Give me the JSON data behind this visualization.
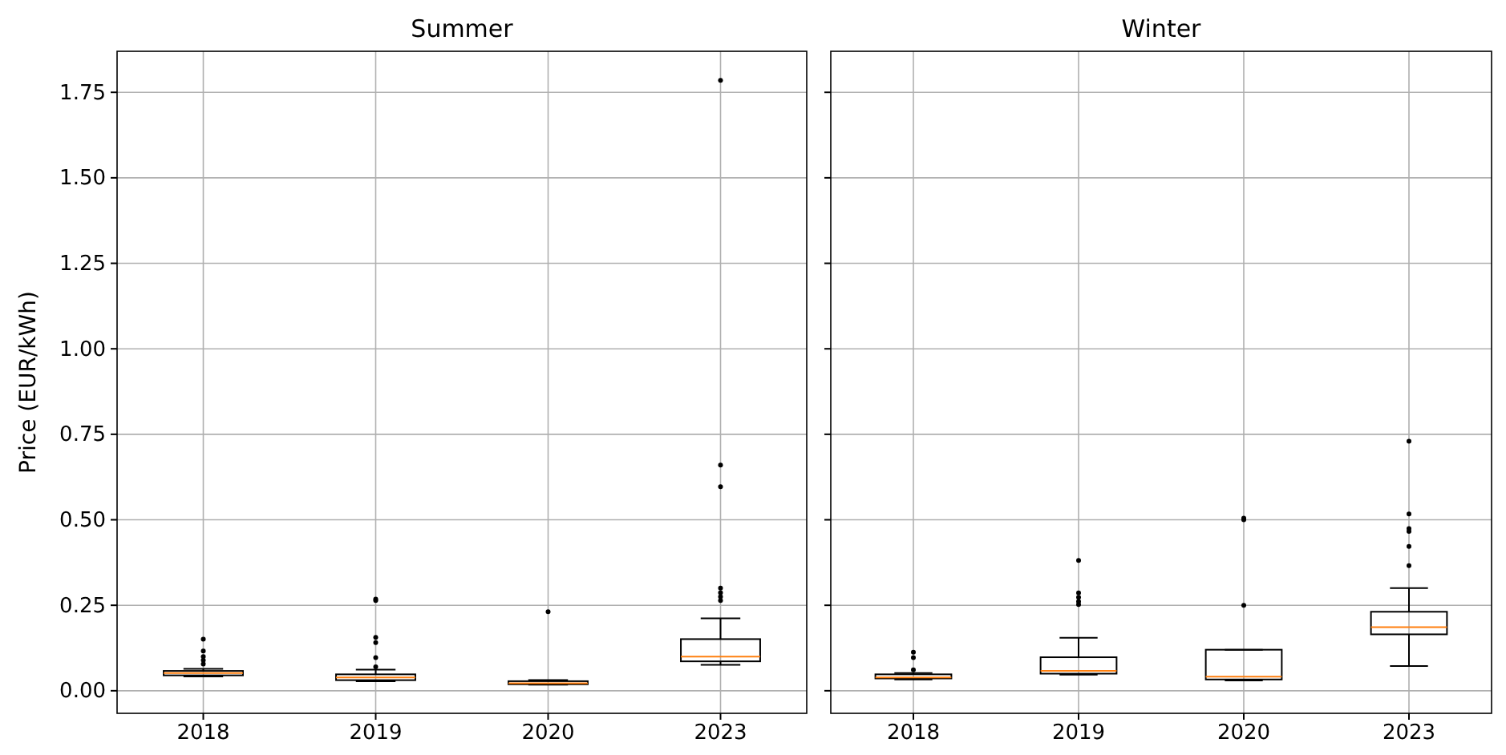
{
  "chart_data": [
    {
      "type": "box",
      "title": "Summer",
      "ylabel": "Price (EUR/kWh)",
      "categories": [
        "2018",
        "2019",
        "2020",
        "2023"
      ],
      "color": "#000000",
      "ylim": [
        -0.066,
        1.87
      ],
      "yticks": [
        {
          "value": 0,
          "label": "0.00"
        },
        {
          "value": 0.25,
          "label": "0.25"
        },
        {
          "value": 0.5,
          "label": "0.50"
        },
        {
          "value": 0.75,
          "label": "0.75"
        },
        {
          "value": 1,
          "label": "1.00"
        },
        {
          "value": 1.25,
          "label": "1.25"
        },
        {
          "value": 1.5,
          "label": "1.50"
        },
        {
          "value": 1.75,
          "label": "1.75"
        }
      ],
      "grid": true,
      "boxes": [
        {
          "low": 0.042,
          "q1": 0.045,
          "median": 0.052,
          "q3": 0.058,
          "high": 0.064,
          "outliers": [
            0.151,
            0.116,
            0.1,
            0.089,
            0.078
          ]
        },
        {
          "low": 0.028,
          "q1": 0.031,
          "median": 0.039,
          "q3": 0.048,
          "high": 0.062,
          "outliers": [
            0.268,
            0.264,
            0.156,
            0.141,
            0.097,
            0.07
          ]
        },
        {
          "low": 0.018,
          "q1": 0.019,
          "median": 0.022,
          "q3": 0.028,
          "high": 0.031,
          "outliers": [
            0.231
          ]
        },
        {
          "low": 0.076,
          "q1": 0.086,
          "median": 0.1,
          "q3": 0.151,
          "high": 0.212,
          "outliers": [
            1.785,
            0.66,
            0.597,
            0.3,
            0.287,
            0.275,
            0.264
          ]
        }
      ]
    },
    {
      "type": "box",
      "title": "Winter",
      "categories": [
        "2018",
        "2019",
        "2020",
        "2023"
      ],
      "color": "#000000",
      "ylim": [
        -0.066,
        1.87
      ],
      "yticks": [
        0,
        0.25,
        0.5,
        0.75,
        1,
        1.25,
        1.5,
        1.75
      ],
      "grid": true,
      "tick_labels": "x",
      "boxes": [
        {
          "low": 0.033,
          "q1": 0.036,
          "median": 0.039,
          "q3": 0.048,
          "high": 0.052,
          "outliers": [
            0.113,
            0.097,
            0.061
          ]
        },
        {
          "low": 0.047,
          "q1": 0.05,
          "median": 0.058,
          "q3": 0.098,
          "high": 0.155,
          "outliers": [
            0.381,
            0.286,
            0.273,
            0.261,
            0.252
          ]
        },
        {
          "low": 0.03,
          "q1": 0.033,
          "median": 0.041,
          "q3": 0.12,
          "high": 0.12,
          "outliers": [
            0.505,
            0.5,
            0.25
          ]
        },
        {
          "low": 0.072,
          "q1": 0.165,
          "median": 0.186,
          "q3": 0.231,
          "high": 0.3,
          "outliers": [
            0.73,
            0.517,
            0.474,
            0.466,
            0.422,
            0.366
          ]
        }
      ]
    }
  ]
}
